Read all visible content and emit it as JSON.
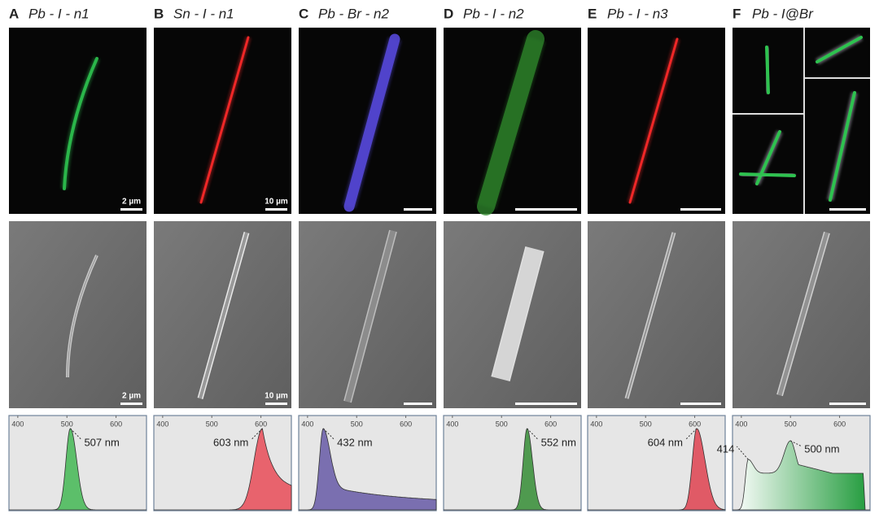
{
  "panels": [
    {
      "letter": "A",
      "title": "Pb - I - n1",
      "scale_bar": "2 µm",
      "sem_scale_bar": "2 µm",
      "spectrum": {
        "xlim": [
          382,
          662
        ],
        "xticks": [
          400,
          500,
          600
        ],
        "peaks": [
          {
            "value": 507,
            "label": "507 nm"
          }
        ]
      }
    },
    {
      "letter": "B",
      "title": "Sn - I - n1",
      "scale_bar": "10 µm",
      "sem_scale_bar": "10 µm",
      "spectrum": {
        "xlim": [
          382,
          662
        ],
        "xticks": [
          400,
          500,
          600
        ],
        "peaks": [
          {
            "value": 603,
            "label": "603 nm"
          }
        ]
      }
    },
    {
      "letter": "C",
      "title": "Pb - Br - n2",
      "spectrum": {
        "xlim": [
          382,
          662
        ],
        "xticks": [
          400,
          500,
          600
        ],
        "peaks": [
          {
            "value": 432,
            "label": "432 nm"
          }
        ]
      }
    },
    {
      "letter": "D",
      "title": "Pb - I - n2",
      "spectrum": {
        "xlim": [
          382,
          662
        ],
        "xticks": [
          400,
          500,
          600
        ],
        "peaks": [
          {
            "value": 552,
            "label": "552 nm"
          }
        ]
      }
    },
    {
      "letter": "E",
      "title": "Pb - I - n3",
      "spectrum": {
        "xlim": [
          382,
          662
        ],
        "xticks": [
          400,
          500,
          600
        ],
        "peaks": [
          {
            "value": 604,
            "label": "604 nm"
          }
        ]
      }
    },
    {
      "letter": "F",
      "title": "Pb - I@Br",
      "spectrum": {
        "xlim": [
          382,
          662
        ],
        "xticks": [
          400,
          500,
          600
        ],
        "peaks": [
          {
            "value": 414,
            "label": "414"
          },
          {
            "value": 500,
            "label": "500 nm"
          }
        ]
      }
    }
  ]
}
